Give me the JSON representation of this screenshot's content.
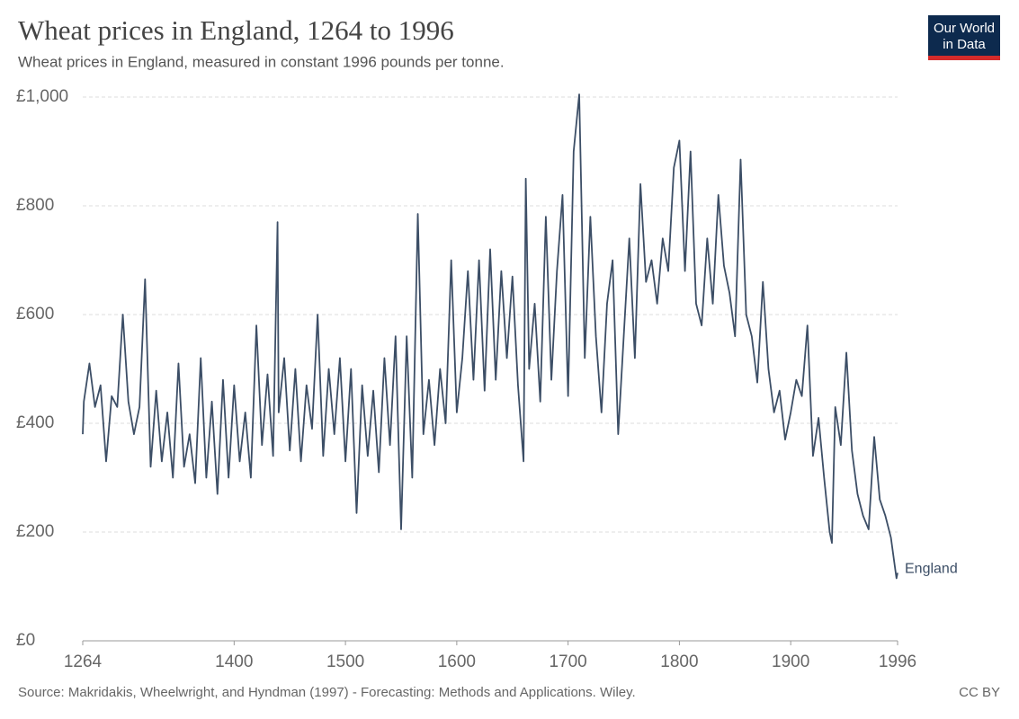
{
  "logo": [
    "Our World",
    "in Data"
  ],
  "chart_data": {
    "type": "line",
    "title": "Wheat prices in England, 1264 to 1996",
    "subtitle": "Wheat prices in England, measured in constant 1996 pounds per tonne.",
    "source": "Source: Makridakis, Wheelwright, and Hyndman (1997) - Forecasting: Methods and Applications. Wiley.",
    "license": "CC BY",
    "xlim": [
      1264,
      1996
    ],
    "xticks": [
      1264,
      1400,
      1500,
      1600,
      1700,
      1800,
      1900,
      1996
    ],
    "ylim": [
      0,
      1000
    ],
    "yticks": [
      {
        "value": 0,
        "label": "£0"
      },
      {
        "value": 200,
        "label": "£200"
      },
      {
        "value": 400,
        "label": "£400"
      },
      {
        "value": 600,
        "label": "£600"
      },
      {
        "value": 800,
        "label": "£800"
      },
      {
        "value": 1000,
        "label": "£1,000"
      }
    ],
    "grid": true,
    "x": [
      1264,
      1265,
      1270,
      1275,
      1280,
      1285,
      1290,
      1295,
      1300,
      1305,
      1310,
      1315,
      1320,
      1325,
      1330,
      1335,
      1340,
      1345,
      1350,
      1355,
      1360,
      1365,
      1370,
      1375,
      1380,
      1385,
      1390,
      1395,
      1400,
      1405,
      1410,
      1415,
      1420,
      1425,
      1430,
      1435,
      1439,
      1440,
      1445,
      1450,
      1455,
      1460,
      1465,
      1470,
      1475,
      1480,
      1485,
      1490,
      1495,
      1500,
      1505,
      1510,
      1515,
      1520,
      1525,
      1530,
      1535,
      1540,
      1545,
      1550,
      1555,
      1560,
      1565,
      1570,
      1575,
      1580,
      1585,
      1590,
      1595,
      1600,
      1605,
      1610,
      1615,
      1620,
      1625,
      1630,
      1635,
      1640,
      1645,
      1650,
      1655,
      1660,
      1662,
      1665,
      1670,
      1675,
      1680,
      1685,
      1690,
      1695,
      1700,
      1705,
      1710,
      1715,
      1720,
      1725,
      1730,
      1735,
      1740,
      1745,
      1750,
      1755,
      1760,
      1765,
      1770,
      1775,
      1780,
      1785,
      1790,
      1795,
      1800,
      1805,
      1810,
      1815,
      1820,
      1825,
      1830,
      1835,
      1840,
      1845,
      1850,
      1855,
      1860,
      1865,
      1870,
      1875,
      1880,
      1885,
      1890,
      1895,
      1900,
      1905,
      1910,
      1915,
      1920,
      1925,
      1930,
      1935,
      1937,
      1940,
      1945,
      1950,
      1955,
      1960,
      1965,
      1970,
      1975,
      1980,
      1985,
      1990,
      1995,
      1996
    ],
    "series": [
      {
        "name": "England",
        "color": "#3c4e66",
        "values": [
          380,
          440,
          510,
          430,
          470,
          330,
          450,
          430,
          600,
          440,
          380,
          430,
          665,
          320,
          460,
          330,
          420,
          300,
          510,
          320,
          380,
          290,
          520,
          300,
          440,
          270,
          480,
          300,
          470,
          330,
          420,
          300,
          580,
          360,
          490,
          340,
          770,
          420,
          520,
          350,
          500,
          330,
          470,
          390,
          600,
          340,
          500,
          380,
          520,
          330,
          500,
          235,
          470,
          340,
          460,
          310,
          520,
          360,
          560,
          205,
          560,
          300,
          785,
          380,
          480,
          360,
          500,
          400,
          700,
          420,
          520,
          680,
          480,
          700,
          460,
          720,
          480,
          680,
          520,
          670,
          470,
          330,
          850,
          500,
          620,
          440,
          780,
          480,
          680,
          820,
          450,
          900,
          1005,
          520,
          780,
          560,
          420,
          620,
          700,
          380,
          560,
          740,
          520,
          840,
          660,
          700,
          620,
          740,
          680,
          870,
          920,
          680,
          900,
          620,
          580,
          740,
          620,
          820,
          690,
          640,
          560,
          885,
          600,
          560,
          475,
          660,
          500,
          420,
          460,
          370,
          420,
          480,
          450,
          580,
          340,
          410,
          300,
          200,
          180,
          430,
          360,
          530,
          350,
          270,
          230,
          205,
          375,
          260,
          230,
          190,
          115,
          125
        ]
      }
    ]
  }
}
